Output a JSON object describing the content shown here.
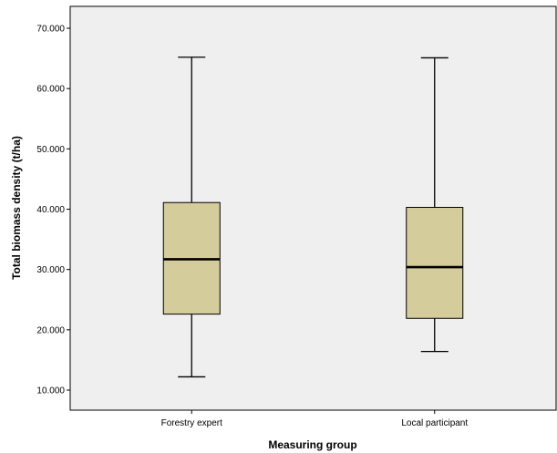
{
  "chart_data": {
    "type": "box",
    "xlabel": "Measuring group",
    "ylabel": "Total biomass density (t/ha)",
    "ylim": [
      6.5,
      72.5
    ],
    "yticks": [
      10,
      20,
      30,
      40,
      50,
      60,
      70
    ],
    "ytick_labels": [
      "10.000",
      "20.000",
      "30.000",
      "40.000",
      "50.000",
      "60.000",
      "70.000"
    ],
    "grid": false,
    "box_color": "#d5cc9b",
    "plot_background": "#efefef",
    "categories": [
      "Forestry expert",
      "Local participant"
    ],
    "boxes": [
      {
        "category": "Forestry expert",
        "min": 12.2,
        "q1": 22.6,
        "median": 31.7,
        "q3": 41.1,
        "max": 65.2
      },
      {
        "category": "Local participant",
        "min": 16.4,
        "q1": 21.9,
        "median": 30.4,
        "q3": 40.3,
        "max": 65.1
      }
    ]
  }
}
